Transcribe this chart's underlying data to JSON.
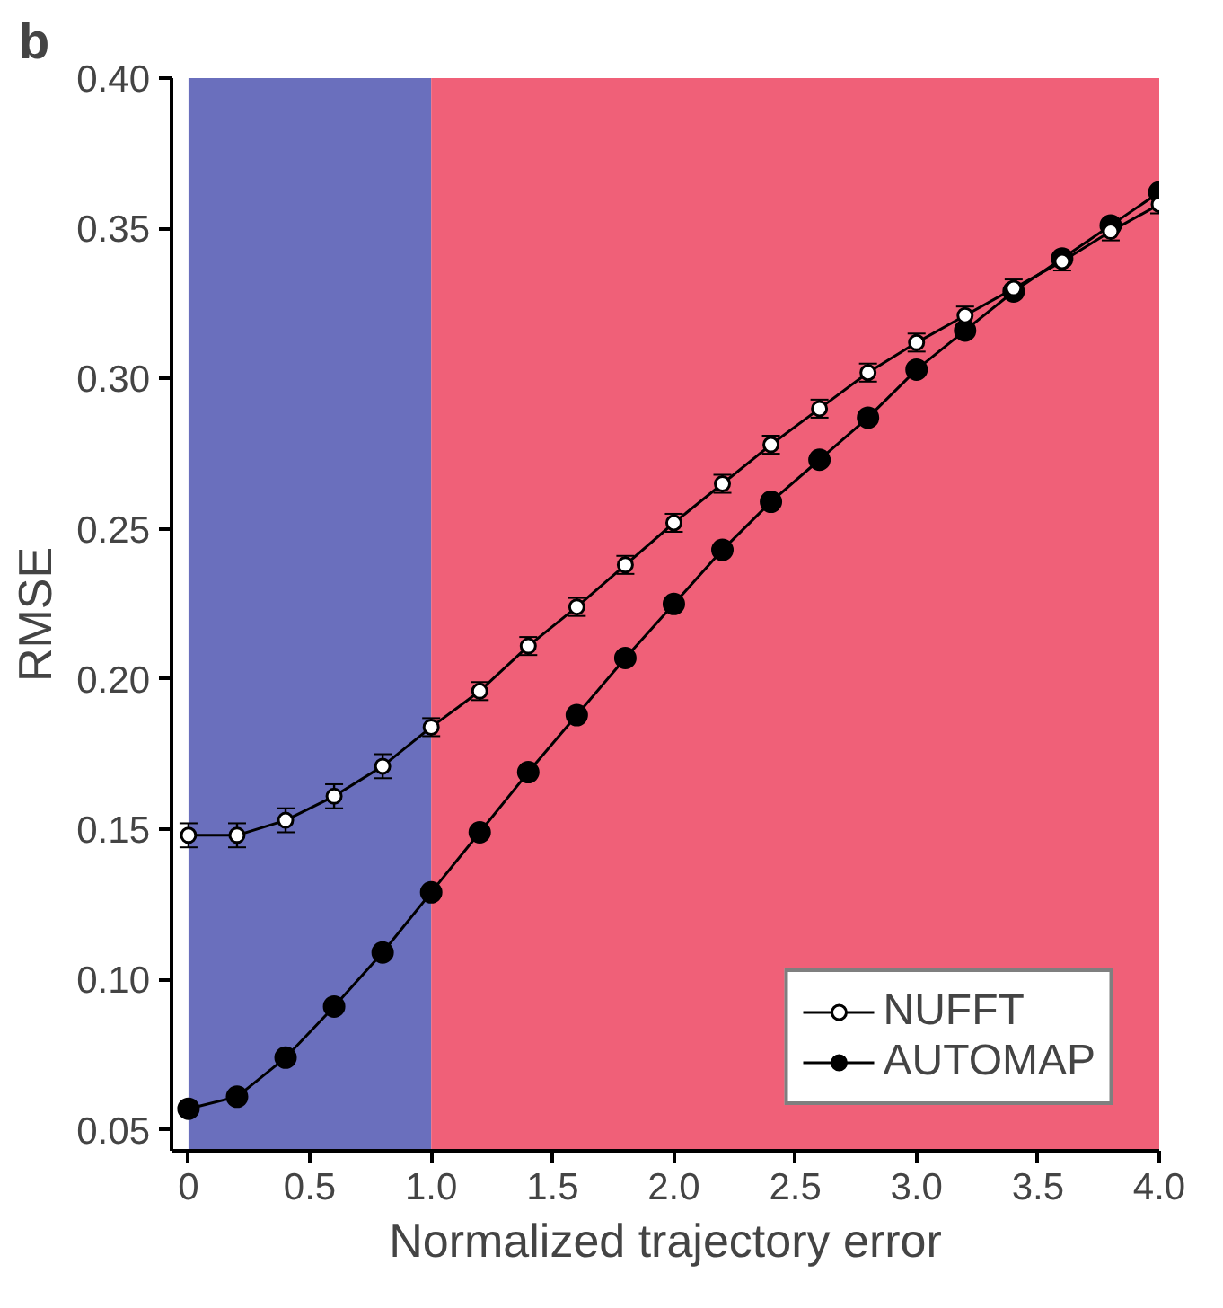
{
  "chart_data": {
    "type": "line",
    "annotations": [
      "b"
    ],
    "xlabel": "Normalized trajectory error",
    "ylabel": "RMSE",
    "x": [
      0,
      0.2,
      0.4,
      0.6,
      0.8,
      1.0,
      1.2,
      1.4,
      1.6,
      1.8,
      2.0,
      2.2,
      2.4,
      2.6,
      2.8,
      3.0,
      3.2,
      3.4,
      3.6,
      3.8,
      4.0
    ],
    "series": [
      {
        "name": "NUFFT",
        "color": "#ffffff",
        "values": [
          0.148,
          0.148,
          0.153,
          0.161,
          0.171,
          0.184,
          0.196,
          0.211,
          0.224,
          0.238,
          0.252,
          0.265,
          0.278,
          0.29,
          0.302,
          0.312,
          0.321,
          0.33,
          0.339,
          0.349,
          0.358
        ],
        "errors": [
          0.004,
          0.004,
          0.004,
          0.004,
          0.004,
          0.003,
          0.003,
          0.003,
          0.003,
          0.003,
          0.003,
          0.003,
          0.003,
          0.003,
          0.003,
          0.003,
          0.003,
          0.003,
          0.003,
          0.003,
          0.003
        ]
      },
      {
        "name": "AUTOMAP",
        "color": "#000000",
        "values": [
          0.057,
          0.061,
          0.074,
          0.091,
          0.109,
          0.129,
          0.149,
          0.169,
          0.188,
          0.207,
          0.225,
          0.243,
          0.259,
          0.273,
          0.287,
          0.303,
          0.316,
          0.329,
          0.34,
          0.351,
          0.362
        ]
      }
    ],
    "bands": [
      {
        "axis": "x",
        "from": 0,
        "to": 1.0,
        "color": "#6a6fbd"
      },
      {
        "axis": "x",
        "from": 1.0,
        "to": 4.0,
        "color": "#f06078"
      }
    ],
    "xlim": [
      -0.07,
      4.0
    ],
    "ylim": [
      0.043,
      0.4
    ],
    "xticks": [
      0,
      {
        "value": 0.5,
        "label": "0.5"
      },
      {
        "value": 1.0,
        "label": "1.0"
      },
      {
        "value": 1.5,
        "label": "1.5"
      },
      {
        "value": 2.0,
        "label": "2.0"
      },
      {
        "value": 2.5,
        "label": "2.5"
      },
      {
        "value": 3.0,
        "label": "3.0"
      },
      {
        "value": 3.5,
        "label": "3.5"
      },
      {
        "value": 4.0,
        "label": "4.0"
      }
    ],
    "yticks": [
      {
        "value": 0.05,
        "label": "0.05"
      },
      {
        "value": 0.1,
        "label": "0.10"
      },
      {
        "value": 0.15,
        "label": "0.15"
      },
      {
        "value": 0.2,
        "label": "0.20"
      },
      {
        "value": 0.25,
        "label": "0.25"
      },
      {
        "value": 0.3,
        "label": "0.30"
      },
      {
        "value": 0.35,
        "label": "0.35"
      },
      {
        "value": 0.4,
        "label": "0.40"
      }
    ],
    "grid": false,
    "legend": "bottom right",
    "marker": "circle",
    "line_style": "solid"
  }
}
